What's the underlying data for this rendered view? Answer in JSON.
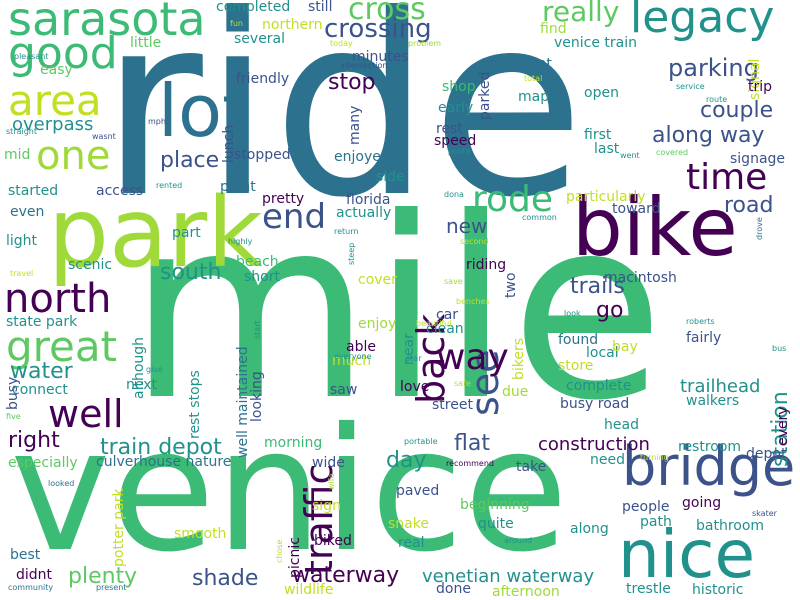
{
  "palette": {
    "dark_purple": "#440154",
    "indigo": "#3b528b",
    "teal_blue": "#2c728e",
    "teal": "#21918c",
    "green": "#3bbb75",
    "light_green": "#5ec962",
    "lime": "#9fda3a",
    "yellow": "#c2df23",
    "bright_yellow": "#e3e418"
  },
  "words": [
    {
      "text": "ride"
    },
    {
      "text": "mile"
    },
    {
      "text": "venice"
    },
    {
      "text": "park"
    },
    {
      "text": "bike"
    },
    {
      "text": "lot"
    },
    {
      "text": "nice"
    },
    {
      "text": "bridge"
    },
    {
      "text": "sarasota"
    },
    {
      "text": "legacy"
    },
    {
      "text": "good"
    },
    {
      "text": "area"
    },
    {
      "text": "one"
    },
    {
      "text": "great"
    },
    {
      "text": "north"
    },
    {
      "text": "well"
    },
    {
      "text": "traffic"
    },
    {
      "text": "back"
    },
    {
      "text": "see"
    },
    {
      "text": "way"
    },
    {
      "text": "rode"
    },
    {
      "text": "time"
    },
    {
      "text": "end"
    },
    {
      "text": "cross"
    },
    {
      "text": "crossing"
    },
    {
      "text": "really"
    },
    {
      "text": "parking"
    },
    {
      "text": "couple"
    },
    {
      "text": "along way"
    },
    {
      "text": "stop"
    },
    {
      "text": "place"
    },
    {
      "text": "south"
    },
    {
      "text": "train depot"
    },
    {
      "text": "water"
    },
    {
      "text": "right"
    },
    {
      "text": "waterway"
    },
    {
      "text": "shade"
    },
    {
      "text": "plenty"
    },
    {
      "text": "day"
    },
    {
      "text": "flat"
    },
    {
      "text": "station"
    },
    {
      "text": "trails"
    },
    {
      "text": "go"
    },
    {
      "text": "road"
    },
    {
      "text": "new"
    },
    {
      "text": "trailhead"
    },
    {
      "text": "venetian waterway"
    },
    {
      "text": "construction"
    },
    {
      "text": "completed"
    },
    {
      "text": "still"
    },
    {
      "text": "several"
    },
    {
      "text": "little"
    },
    {
      "text": "easy"
    },
    {
      "text": "lunch"
    },
    {
      "text": "friendly"
    },
    {
      "text": "overpass"
    },
    {
      "text": "minutes"
    },
    {
      "text": "intersection"
    },
    {
      "text": "parked"
    },
    {
      "text": "find"
    },
    {
      "text": "dont"
    },
    {
      "text": "venice train"
    },
    {
      "text": "signal"
    },
    {
      "text": "map"
    },
    {
      "text": "shop"
    },
    {
      "text": "early"
    },
    {
      "text": "rest"
    },
    {
      "text": "speed"
    },
    {
      "text": "polite"
    },
    {
      "text": "open"
    },
    {
      "text": "trip"
    },
    {
      "text": "first"
    },
    {
      "text": "last"
    },
    {
      "text": "went"
    },
    {
      "text": "covered"
    },
    {
      "text": "signage"
    },
    {
      "text": "route"
    },
    {
      "text": "service"
    },
    {
      "text": "total"
    },
    {
      "text": "problem"
    },
    {
      "text": "today"
    },
    {
      "text": "northern"
    },
    {
      "text": "fun"
    },
    {
      "text": "pleasant"
    },
    {
      "text": "straight"
    },
    {
      "text": "wasnt"
    },
    {
      "text": "mid"
    },
    {
      "text": "mph"
    },
    {
      "text": "many"
    },
    {
      "text": "enjoyed"
    },
    {
      "text": "stopped"
    },
    {
      "text": "side"
    },
    {
      "text": "started"
    },
    {
      "text": "access"
    },
    {
      "text": "rented"
    },
    {
      "text": "point"
    },
    {
      "text": "dona"
    },
    {
      "text": "particularly"
    },
    {
      "text": "pretty"
    },
    {
      "text": "florida"
    },
    {
      "text": "actually"
    },
    {
      "text": "toward"
    },
    {
      "text": "common"
    },
    {
      "text": "even"
    },
    {
      "text": "light"
    },
    {
      "text": "part"
    },
    {
      "text": "highly"
    },
    {
      "text": "return"
    },
    {
      "text": "second"
    },
    {
      "text": "drove"
    },
    {
      "text": "beach"
    },
    {
      "text": "short"
    },
    {
      "text": "scenic"
    },
    {
      "text": "travel"
    },
    {
      "text": "steep"
    },
    {
      "text": "riding"
    },
    {
      "text": "macintosh"
    },
    {
      "text": "two"
    },
    {
      "text": "car"
    },
    {
      "text": "clean"
    },
    {
      "text": "cover"
    },
    {
      "text": "save"
    },
    {
      "text": "benches"
    },
    {
      "text": "beautiful"
    },
    {
      "text": "enjoy"
    },
    {
      "text": "state park"
    },
    {
      "text": "start"
    },
    {
      "text": "near"
    },
    {
      "text": "look"
    },
    {
      "text": "roberts"
    },
    {
      "text": "although"
    },
    {
      "text": "able"
    },
    {
      "text": "much"
    },
    {
      "text": "everyone"
    },
    {
      "text": "star"
    },
    {
      "text": "bikers"
    },
    {
      "text": "found"
    },
    {
      "text": "local"
    },
    {
      "text": "bay"
    },
    {
      "text": "fairly"
    },
    {
      "text": "store"
    },
    {
      "text": "bus"
    },
    {
      "text": "busy"
    },
    {
      "text": "give"
    },
    {
      "text": "connect"
    },
    {
      "text": "next"
    },
    {
      "text": "rest stops"
    },
    {
      "text": "well maintained"
    },
    {
      "text": "looking"
    },
    {
      "text": "saw"
    },
    {
      "text": "love"
    },
    {
      "text": "safe"
    },
    {
      "text": "due"
    },
    {
      "text": "complete"
    },
    {
      "text": "busy road"
    },
    {
      "text": "walkers"
    },
    {
      "text": "every"
    },
    {
      "text": "five"
    },
    {
      "text": "street"
    },
    {
      "text": "head"
    },
    {
      "text": "restroom"
    },
    {
      "text": "depot"
    },
    {
      "text": "especially"
    },
    {
      "text": "morning"
    },
    {
      "text": "culverhouse nature"
    },
    {
      "text": "wide"
    },
    {
      "text": "portable"
    },
    {
      "text": "recommend"
    },
    {
      "text": "need"
    },
    {
      "text": "turning"
    },
    {
      "text": "take"
    },
    {
      "text": "paved"
    },
    {
      "text": "wife"
    },
    {
      "text": "looked"
    },
    {
      "text": "potter park"
    },
    {
      "text": "beginning"
    },
    {
      "text": "going"
    },
    {
      "text": "people"
    },
    {
      "text": "skater"
    },
    {
      "text": "sign"
    },
    {
      "text": "snake"
    },
    {
      "text": "quite"
    },
    {
      "text": "path"
    },
    {
      "text": "bathroom"
    },
    {
      "text": "smooth"
    },
    {
      "text": "picnic"
    },
    {
      "text": "biked"
    },
    {
      "text": "real"
    },
    {
      "text": "around"
    },
    {
      "text": "along"
    },
    {
      "text": "best"
    },
    {
      "text": "chose"
    },
    {
      "text": "didnt"
    },
    {
      "text": "community"
    },
    {
      "text": "present"
    },
    {
      "text": "wildlife"
    },
    {
      "text": "done"
    },
    {
      "text": "afternoon"
    },
    {
      "text": "trestle"
    },
    {
      "text": "historic"
    }
  ]
}
